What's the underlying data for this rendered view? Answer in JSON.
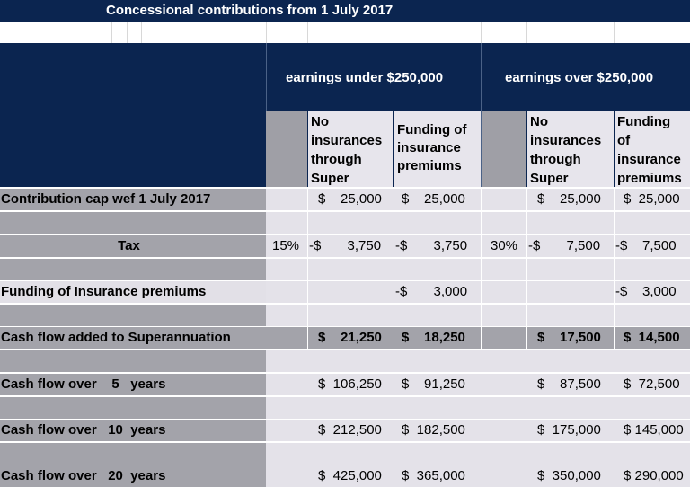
{
  "title": "Concessional contributions  from 1 July 2017",
  "groups": {
    "under": "earnings under $250,000",
    "over": "earnings over $250,000"
  },
  "subheaders": {
    "no_ins": [
      "No",
      "insurances",
      "through",
      "Super"
    ],
    "funding_under": [
      "Funding of",
      "insurance",
      "premiums"
    ],
    "funding_over": [
      "Funding",
      "of",
      "insurance",
      "premiums"
    ]
  },
  "rows": {
    "cap": {
      "label": "Contribution cap wef 1 July 2017",
      "u1": "$    25,000",
      "u2": "$    25,000",
      "o1": "$    25,000",
      "o2": "$  25,000"
    },
    "tax": {
      "label": "Tax",
      "rate_u": "15%",
      "u1": "-$       3,750",
      "u2": "-$       3,750",
      "rate_o": "30%",
      "o1": "-$       7,500",
      "o2": "-$    7,500"
    },
    "ins": {
      "label": "Funding of Insurance premiums",
      "u2": "-$       3,000",
      "o2": "-$    3,000"
    },
    "cash": {
      "label": "Cash flow added to Superannuation",
      "u1": "$    21,250",
      "u2": "$    18,250",
      "o1": "$    17,500",
      "o2": "$  14,500"
    },
    "y5": {
      "label": "Cash flow over    5   years",
      "u1": "$  106,250",
      "u2": "$    91,250",
      "o1": "$    87,500",
      "o2": "$  72,500"
    },
    "y10": {
      "label": "Cash flow over   10  years",
      "u1": "$  212,500",
      "u2": "$  182,500",
      "o1": "$  175,000",
      "o2": "$ 145,000"
    },
    "y20": {
      "label": "Cash flow over   20  years",
      "u1": "$  425,000",
      "u2": "$  365,000",
      "o1": "$  350,000",
      "o2": "$ 290,000"
    }
  }
}
